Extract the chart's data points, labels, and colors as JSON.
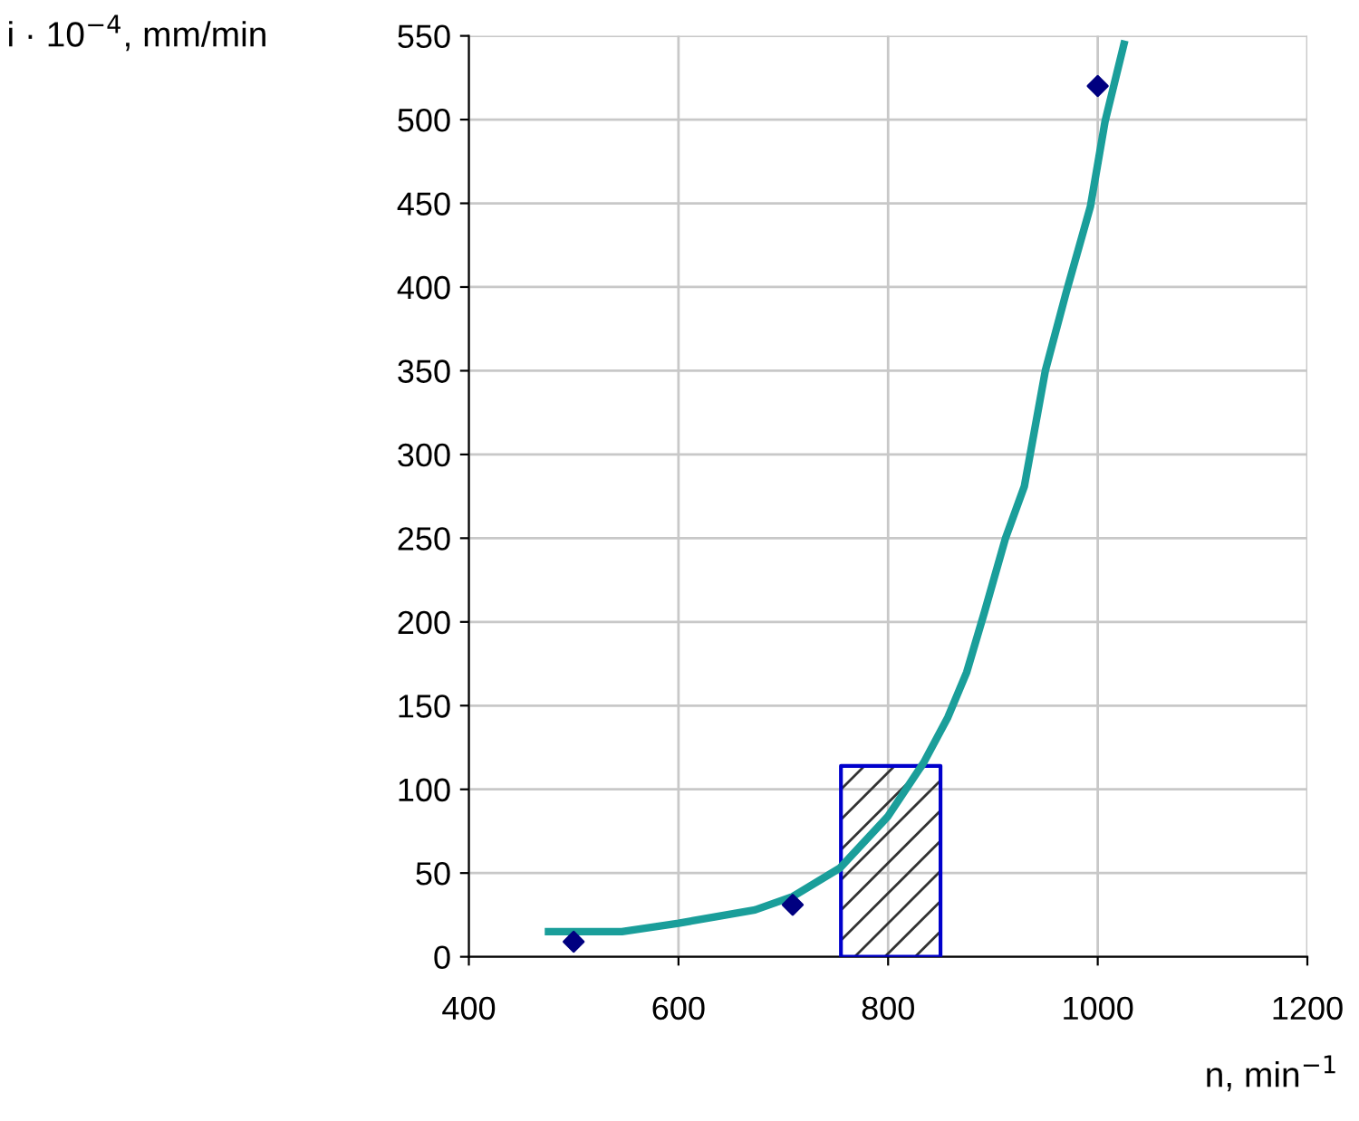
{
  "chart_data": {
    "type": "scatter",
    "xlabel": "n, min$^{−1}$",
    "ylabel": "i · 10$^{−4}$, mm/min",
    "xlim": [
      400,
      1200
    ],
    "xticks": [
      400,
      600,
      800,
      1000,
      1200
    ],
    "ylim": [
      0,
      550
    ],
    "yticks": [
      0,
      50,
      100,
      150,
      200,
      250,
      300,
      350,
      400,
      450,
      500,
      550
    ],
    "grid": true,
    "series": [
      {
        "type": "area",
        "color": "#0000cc",
        "x": [
          755,
          850
        ],
        "values": [
          114,
          114
        ]
      },
      {
        "type": "line",
        "color": "#1a9e9a",
        "marker": "none",
        "x": [
          476,
          546,
          600,
          673,
          709,
          754,
          800,
          834,
          857,
          875,
          892,
          912,
          930,
          950,
          970,
          993,
          1007,
          1025
        ],
        "values": [
          15,
          15,
          20,
          28,
          36,
          53,
          84,
          116,
          143,
          170,
          206,
          250,
          281,
          350,
          397,
          448,
          499,
          545
        ]
      },
      {
        "color": "#000080",
        "marker": "diamond",
        "x": [
          500,
          709,
          1000
        ],
        "values": [
          9,
          31,
          520
        ]
      }
    ]
  }
}
